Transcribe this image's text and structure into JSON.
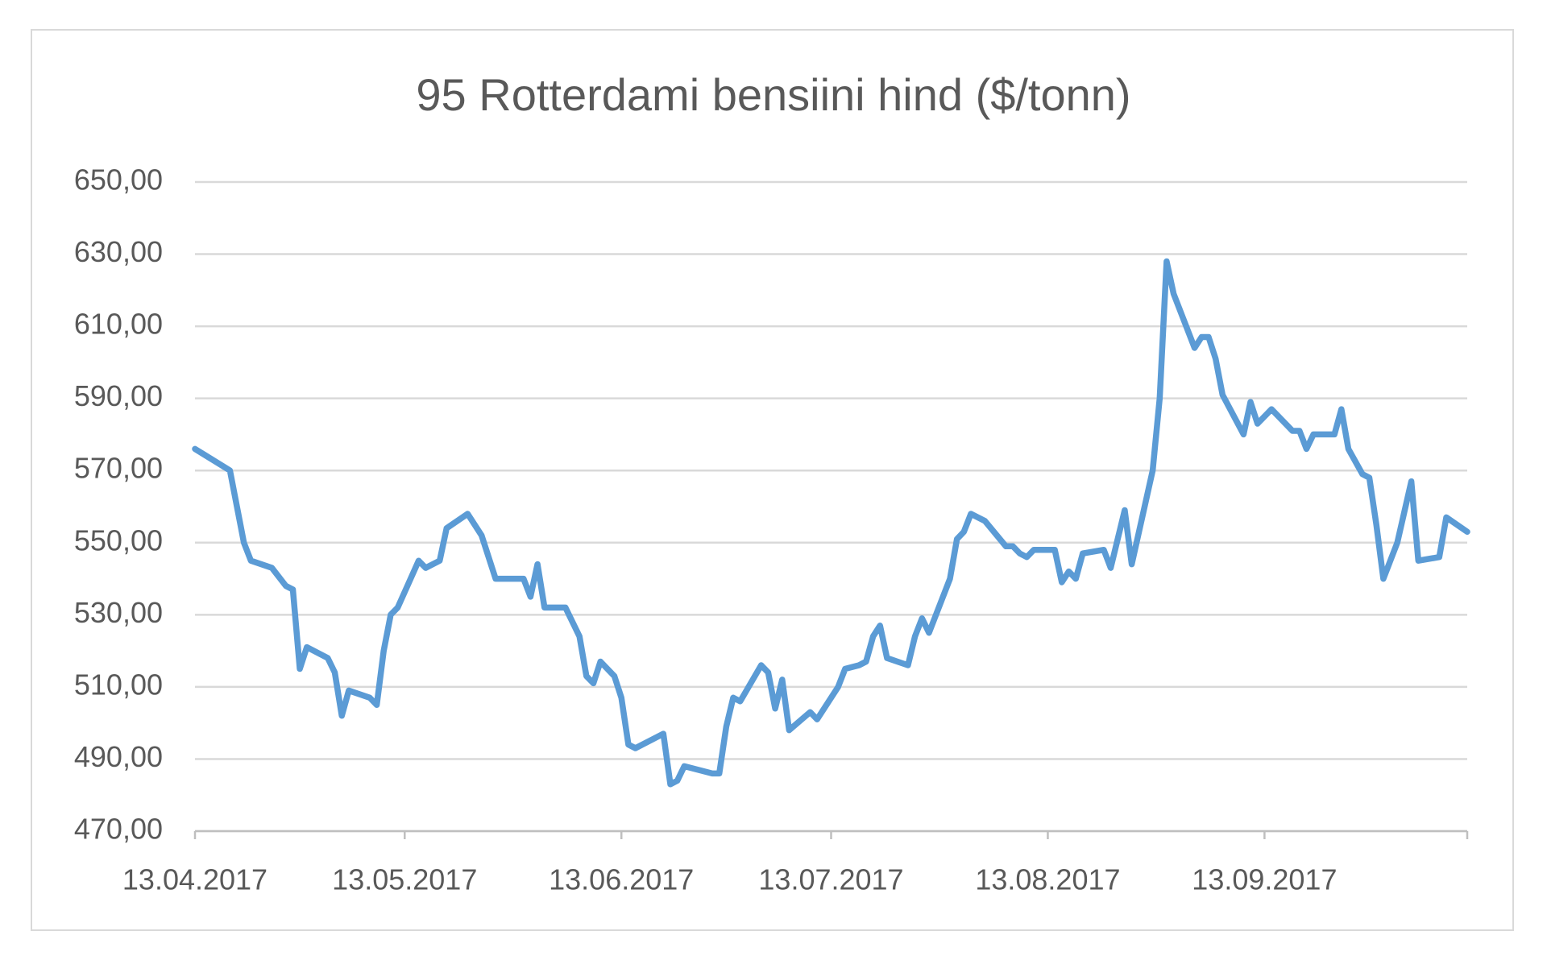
{
  "chart_data": {
    "type": "line",
    "title": "95 Rotterdami bensiini hind ($/tonn)",
    "series": [
      {
        "color": "#5b9bd5",
        "x": [
          "2017-04-13",
          "2017-04-18",
          "2017-04-20",
          "2017-04-21",
          "2017-04-24",
          "2017-04-26",
          "2017-04-27",
          "2017-04-28",
          "2017-04-29",
          "2017-05-02",
          "2017-05-03",
          "2017-05-04",
          "2017-05-05",
          "2017-05-08",
          "2017-05-09",
          "2017-05-10",
          "2017-05-11",
          "2017-05-12",
          "2017-05-15",
          "2017-05-16",
          "2017-05-18",
          "2017-05-19",
          "2017-05-22",
          "2017-05-24",
          "2017-05-26",
          "2017-05-30",
          "2017-05-31",
          "2017-06-01",
          "2017-06-02",
          "2017-06-05",
          "2017-06-07",
          "2017-06-08",
          "2017-06-09",
          "2017-06-10",
          "2017-06-12",
          "2017-06-13",
          "2017-06-14",
          "2017-06-15",
          "2017-06-19",
          "2017-06-20",
          "2017-06-21",
          "2017-06-22",
          "2017-06-26",
          "2017-06-27",
          "2017-06-28",
          "2017-06-29",
          "2017-06-30",
          "2017-07-03",
          "2017-07-04",
          "2017-07-05",
          "2017-07-06",
          "2017-07-07",
          "2017-07-10",
          "2017-07-11",
          "2017-07-14",
          "2017-07-15",
          "2017-07-17",
          "2017-07-18",
          "2017-07-19",
          "2017-07-20",
          "2017-07-21",
          "2017-07-24",
          "2017-07-25",
          "2017-07-26",
          "2017-07-27",
          "2017-07-30",
          "2017-07-31",
          "2017-08-01",
          "2017-08-02",
          "2017-08-04",
          "2017-08-07",
          "2017-08-08",
          "2017-08-09",
          "2017-08-10",
          "2017-08-11",
          "2017-08-14",
          "2017-08-15",
          "2017-08-16",
          "2017-08-17",
          "2017-08-18",
          "2017-08-21",
          "2017-08-22",
          "2017-08-23",
          "2017-08-24",
          "2017-08-25",
          "2017-08-28",
          "2017-08-29",
          "2017-08-30",
          "2017-08-31",
          "2017-09-03",
          "2017-09-04",
          "2017-09-05",
          "2017-09-06",
          "2017-09-07",
          "2017-09-10",
          "2017-09-11",
          "2017-09-12",
          "2017-09-14",
          "2017-09-17",
          "2017-09-18",
          "2017-09-19",
          "2017-09-20",
          "2017-09-23",
          "2017-09-24",
          "2017-09-25",
          "2017-09-27",
          "2017-09-28",
          "2017-09-29",
          "2017-09-30",
          "2017-10-02",
          "2017-10-04",
          "2017-10-05",
          "2017-10-08",
          "2017-10-09",
          "2017-10-12"
        ],
        "values": [
          576,
          570,
          550,
          545,
          543,
          538,
          537,
          515,
          521,
          518,
          514,
          502,
          509,
          507,
          505,
          520,
          530,
          532,
          545,
          543,
          545,
          554,
          558,
          552,
          540,
          540,
          535,
          544,
          532,
          532,
          524,
          513,
          511,
          517,
          513,
          507,
          494,
          493,
          497,
          483,
          484,
          488,
          486,
          486,
          499,
          507,
          506,
          516,
          514,
          504,
          512,
          498,
          503,
          501,
          510,
          515,
          516,
          517,
          524,
          527,
          518,
          516,
          524,
          529,
          525,
          540,
          551,
          553,
          558,
          556,
          549,
          549,
          547,
          546,
          548,
          548,
          539,
          542,
          540,
          547,
          548,
          543,
          551,
          559,
          544,
          570,
          590,
          628,
          619,
          604,
          607,
          607,
          601,
          591,
          580,
          589,
          583,
          587,
          581,
          581,
          576,
          580,
          580,
          587,
          576,
          569,
          568,
          555,
          540,
          550,
          567,
          545,
          546,
          557,
          553
        ]
      }
    ],
    "xlim": [
      "2017-04-13",
      "2017-10-12"
    ],
    "xticks": [
      {
        "value": "2017-04-13",
        "label": "13.04.2017"
      },
      {
        "value": "2017-05-13",
        "label": "13.05.2017"
      },
      {
        "value": "2017-06-13",
        "label": "13.06.2017"
      },
      {
        "value": "2017-07-13",
        "label": "13.07.2017"
      },
      {
        "value": "2017-08-13",
        "label": "13.08.2017"
      },
      {
        "value": "2017-09-13",
        "label": "13.09.2017"
      }
    ],
    "ylim": [
      470,
      650
    ],
    "yticks": [
      {
        "value": 470,
        "label": "470,00"
      },
      {
        "value": 490,
        "label": "490,00"
      },
      {
        "value": 510,
        "label": "510,00"
      },
      {
        "value": 530,
        "label": "530,00"
      },
      {
        "value": 550,
        "label": "550,00"
      },
      {
        "value": 570,
        "label": "570,00"
      },
      {
        "value": 590,
        "label": "590,00"
      },
      {
        "value": 610,
        "label": "610,00"
      },
      {
        "value": 630,
        "label": "630,00"
      },
      {
        "value": 650,
        "label": "650,00"
      }
    ],
    "grid": true
  }
}
